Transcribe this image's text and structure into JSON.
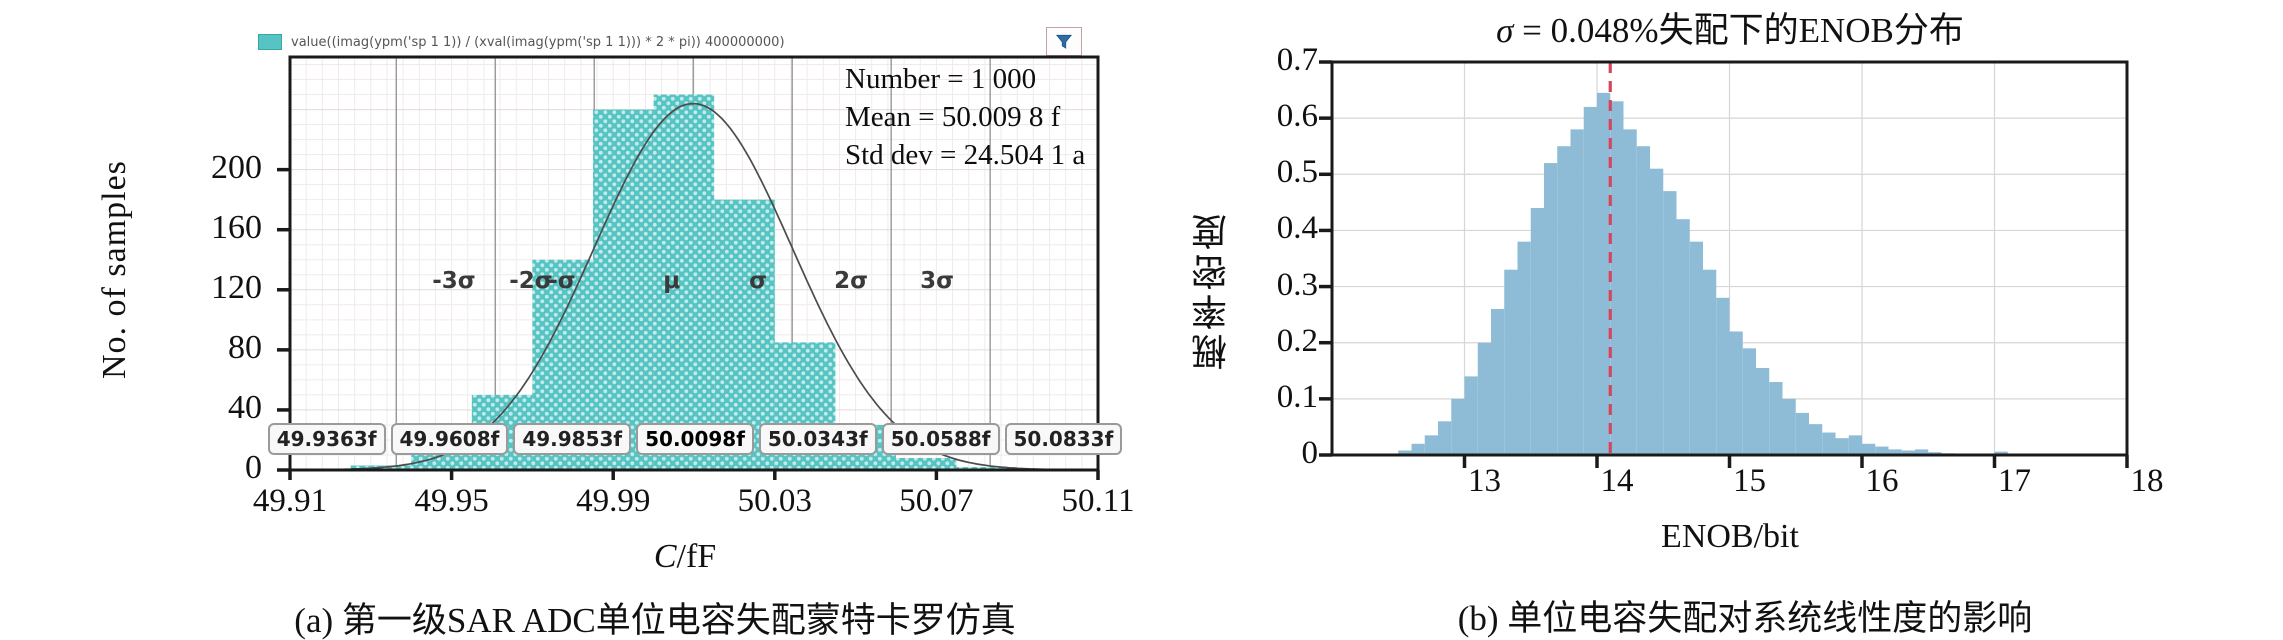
{
  "figure": {
    "panel_a": {
      "legend_expression": "value((imag(ypm('sp 1 1)) / (xval(imag(ypm('sp 1 1))) * 2 * pi)) 400000000)",
      "filter_icon": "funnel-icon",
      "stats": {
        "number_line": "Number = 1 000",
        "mean_line": "Mean = 50.009 8 f",
        "stddev_line": "Std dev = 24.504 1 a"
      },
      "ylabel": "No. of samples",
      "xlabel_var": "C",
      "xlabel_unit": "/fF",
      "sigma_labels": [
        "-3σ",
        "-2σ",
        "-σ",
        "μ",
        "σ",
        "2σ",
        "3σ"
      ],
      "value_boxes": [
        "49.9363f",
        "49.9608f",
        "49.9853f",
        "50.0098f",
        "50.0343f",
        "50.0588f",
        "50.0833f"
      ],
      "caption": "(a) 第一级SAR ADC单位电容失配蒙特卡罗仿真"
    },
    "panel_b": {
      "title_sigma": "σ",
      "title_rest": " = 0.048%失配下的ENOB分布",
      "ylabel": "概率密度",
      "xlabel": "ENOB/bit",
      "caption": "(b) 单位电容失配对系统线性度的影响"
    },
    "colors": {
      "hist_a_fill": "#57c4c4",
      "hist_a_dot": "#ffffff",
      "gauss_curve": "#4c4c4c",
      "sigma_line": "#8f8f8f",
      "grid_minor": "#f1eaea",
      "grid_major": "#e2dada",
      "hist_b_fill": "#8ebcd6",
      "grid_b": "#d6d6d6",
      "marker_dashed": "#d6455e",
      "axis_border": "#1a1a1a",
      "funnel_blue": "#2d6ca5"
    }
  },
  "chart_data": [
    {
      "type": "bar",
      "subtype": "monte-carlo-histogram",
      "title": "",
      "xlabel": "C/fF",
      "ylabel": "No. of samples",
      "xlim": [
        49.91,
        50.11
      ],
      "ylim": [
        0,
        275
      ],
      "xticks": [
        49.91,
        49.95,
        49.99,
        50.03,
        50.07,
        50.11
      ],
      "xtick_labels": [
        "49.91",
        "49.95",
        "49.99",
        "50.03",
        "50.07",
        "50.11"
      ],
      "yticks": [
        0,
        40,
        80,
        120,
        160,
        200
      ],
      "ytick_labels": [
        "0",
        "40",
        "80",
        "120",
        "160",
        "200"
      ],
      "bin_start": 49.925,
      "bin_width": 0.015,
      "counts": [
        3,
        12,
        50,
        140,
        240,
        250,
        180,
        85,
        30,
        8,
        2
      ],
      "overlay_curve": {
        "shape": "gaussian",
        "mean": 50.0098,
        "sigma": 0.0245,
        "peak": 244
      },
      "sigma_line_values": [
        49.9363,
        49.9608,
        49.9853,
        50.0098,
        50.0343,
        50.0588,
        50.0833
      ],
      "stats": {
        "number": 1000,
        "mean_fF": 50.0098,
        "std_dev_aF": 24.5041
      },
      "legend": "value((imag(ypm('sp 1 1)) / (xval(imag(ypm('sp 1 1))) * 2 * pi)) 400000000)",
      "grid": true
    },
    {
      "type": "bar",
      "subtype": "probability-density-histogram",
      "title": "σ = 0.048%失配下的ENOB分布",
      "xlabel": "ENOB/bit",
      "ylabel": "概率密度",
      "xlim": [
        12,
        18
      ],
      "ylim": [
        0,
        0.7
      ],
      "xticks": [
        13,
        14,
        15,
        16,
        17,
        18
      ],
      "xtick_labels": [
        "13",
        "14",
        "15",
        "16",
        "17",
        "18"
      ],
      "yticks": [
        0,
        0.1,
        0.2,
        0.3,
        0.4,
        0.5,
        0.6,
        0.7
      ],
      "ytick_labels": [
        "0",
        "0.1",
        "0.2",
        "0.3",
        "0.4",
        "0.5",
        "0.6",
        "0.7"
      ],
      "bin_start": 12.5,
      "bin_width": 0.1,
      "densities": [
        0.008,
        0.02,
        0.035,
        0.06,
        0.1,
        0.14,
        0.2,
        0.26,
        0.33,
        0.38,
        0.44,
        0.52,
        0.55,
        0.58,
        0.62,
        0.645,
        0.63,
        0.58,
        0.55,
        0.51,
        0.47,
        0.42,
        0.38,
        0.33,
        0.28,
        0.22,
        0.19,
        0.155,
        0.13,
        0.1,
        0.075,
        0.055,
        0.04,
        0.03,
        0.035,
        0.02,
        0.015,
        0.01,
        0.008,
        0.01,
        0.005,
        0.003
      ],
      "extra_bars": [
        {
          "x": 17.0,
          "h": 0.006
        }
      ],
      "marker_line_x": 14.1,
      "grid": true
    }
  ]
}
